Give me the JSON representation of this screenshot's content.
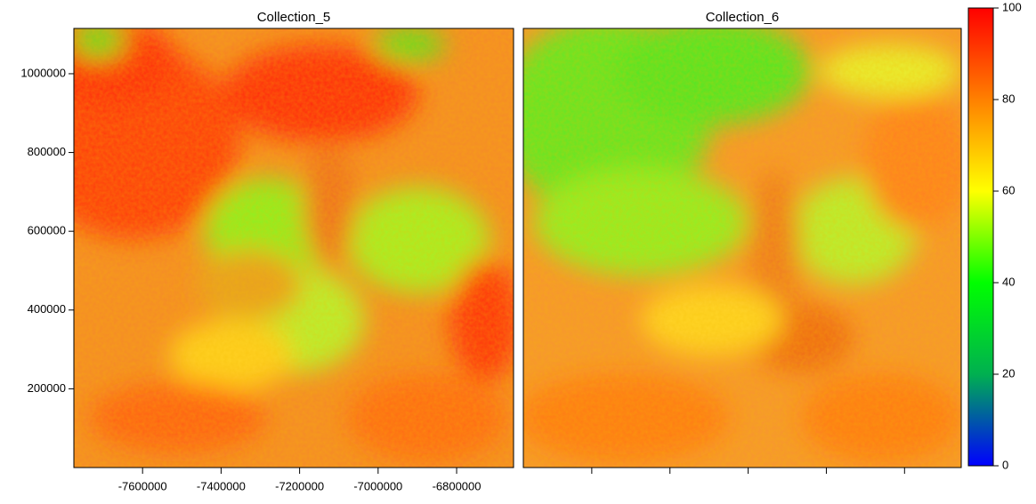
{
  "map": {
    "panels": [
      {
        "title": "Collection_5"
      },
      {
        "title": "Collection_6"
      }
    ],
    "xlim": [
      -7775000,
      -6655000
    ],
    "ylim": [
      0,
      1115000
    ],
    "xticks": [
      -7600000,
      -7400000,
      -7200000,
      -7000000,
      -6800000
    ],
    "yticks": [
      200000,
      400000,
      600000,
      800000,
      1000000
    ],
    "colorbar": {
      "lim": [
        0,
        100
      ],
      "ticks": [
        0,
        20,
        40,
        60,
        80,
        100
      ],
      "colors": [
        "#0000ff",
        "#00b050",
        "#00ff00",
        "#ffff00",
        "#ff8000",
        "#ff0000"
      ]
    }
  }
}
